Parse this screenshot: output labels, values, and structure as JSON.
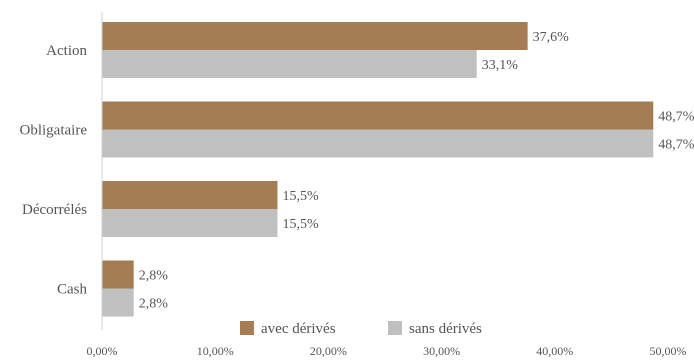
{
  "chart_data": {
    "type": "bar",
    "orientation": "horizontal",
    "categories": [
      "Action",
      "Obligataire",
      "Décorrélés",
      "Cash"
    ],
    "series": [
      {
        "name": "avec dérivés",
        "color": "#a67c52",
        "values": [
          37.6,
          48.7,
          15.5,
          2.8
        ],
        "labels": [
          "37,6%",
          "48,7%",
          "15,5%",
          "2,8%"
        ]
      },
      {
        "name": "sans dérivés",
        "color": "#c0c0c0",
        "values": [
          33.1,
          48.7,
          15.5,
          2.8
        ],
        "labels": [
          "33,1%",
          "48,7%",
          "15,5%",
          "2,8%"
        ]
      }
    ],
    "xlim": [
      0,
      50
    ],
    "xticks": [
      0,
      10,
      20,
      30,
      40,
      50
    ],
    "xtick_labels": [
      "0,00%",
      "10,00%",
      "20,00%",
      "30,00%",
      "40,00%",
      "50,00%"
    ],
    "grid": false,
    "legend_position": "bottom"
  }
}
